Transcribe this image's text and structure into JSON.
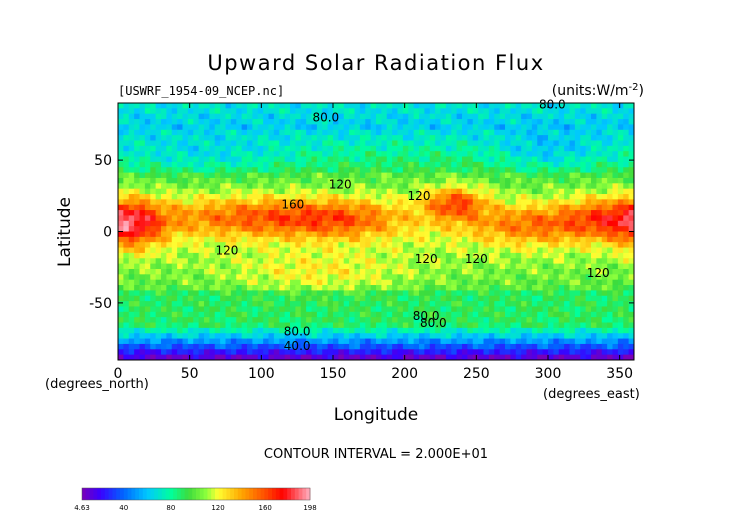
{
  "chart_data": {
    "type": "heatmap",
    "title": "Upward Solar Radiation Flux",
    "file_label": "[USWRF_1954-09_NCEP.nc]",
    "units_label": "(units:W/m^-2)",
    "xlabel": "Longitude",
    "ylabel": "Latitude",
    "x_unit_note": "(degrees_east)",
    "y_unit_note": "(degrees_north)",
    "xlim": [
      0,
      360
    ],
    "ylim": [
      -90,
      90
    ],
    "x_ticks": [
      0,
      50,
      100,
      150,
      200,
      250,
      300,
      350
    ],
    "y_ticks": [
      50,
      0,
      -50
    ],
    "contour_interval_text": "CONTOUR INTERVAL = 2.000E+01",
    "contour_labels": [
      {
        "text": "80.0",
        "lon": 145,
        "lat": 77
      },
      {
        "text": "80.0",
        "lon": 303,
        "lat": 86
      },
      {
        "text": "120",
        "lon": 155,
        "lat": 30
      },
      {
        "text": "160",
        "lon": 122,
        "lat": 16
      },
      {
        "text": "120",
        "lon": 210,
        "lat": 22
      },
      {
        "text": "120",
        "lon": 76,
        "lat": -16
      },
      {
        "text": "120",
        "lon": 215,
        "lat": -22
      },
      {
        "text": "120",
        "lon": 250,
        "lat": -22
      },
      {
        "text": "120",
        "lon": 335,
        "lat": -32
      },
      {
        "text": "80.0",
        "lon": 215,
        "lat": -62
      },
      {
        "text": "80.0",
        "lon": 220,
        "lat": -67
      },
      {
        "text": "80.0",
        "lon": 125,
        "lat": -73
      },
      {
        "text": "40.0",
        "lon": 125,
        "lat": -83
      }
    ],
    "colorbar": {
      "min": 4.63,
      "max": 198,
      "tick_labels": [
        "4.63",
        "40",
        "80",
        "120",
        "160",
        "198"
      ],
      "tick_values": [
        4.63,
        40,
        80,
        120,
        160,
        198
      ],
      "colors": [
        "#7a00b8",
        "#3300ff",
        "#0088ff",
        "#00e5ff",
        "#00ff9c",
        "#3ddc3d",
        "#8cff3c",
        "#ffff33",
        "#ffa500",
        "#ff4d00",
        "#ff0000",
        "#ffb0c0"
      ]
    }
  }
}
